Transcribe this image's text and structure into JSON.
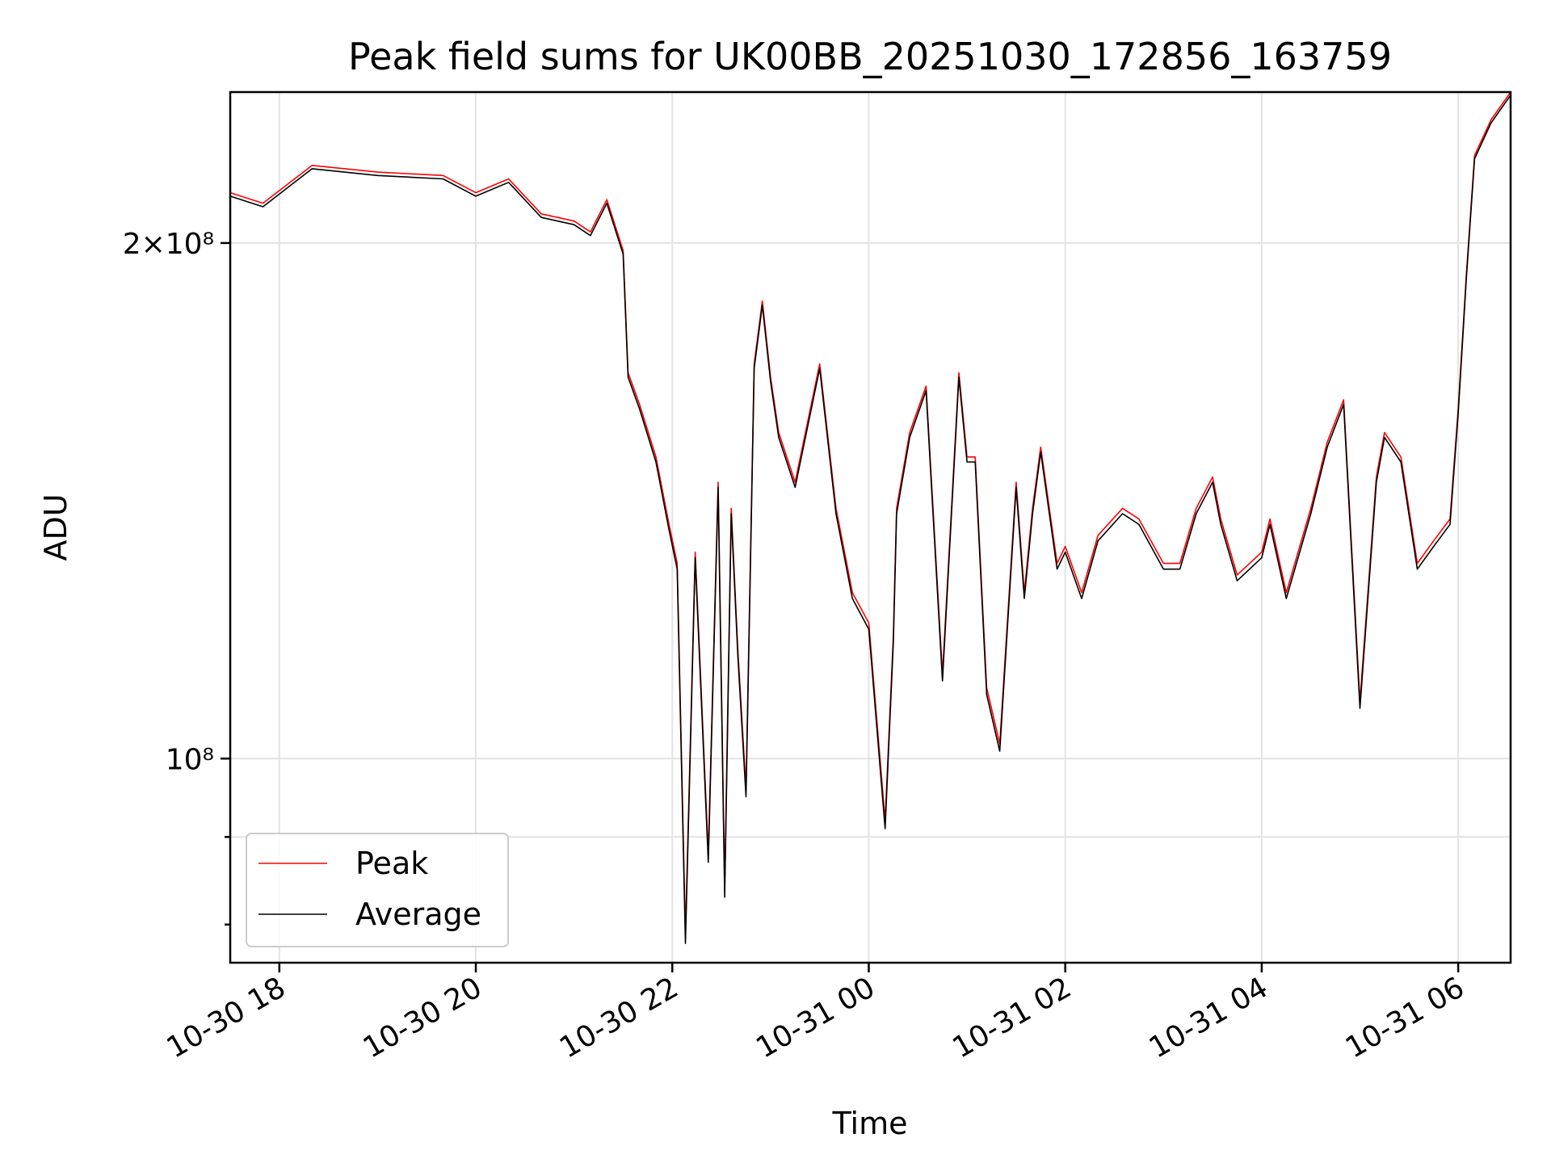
{
  "chart_data": {
    "type": "line",
    "title": "Peak field sums for UK00BB_20251030_172856_163759",
    "xlabel": "Time",
    "ylabel": "ADU",
    "yscale": "log",
    "ylim": [
      76000000,
      245000000
    ],
    "xlim": [
      "2025-10-30 17:30",
      "2025-10-31 06:32"
    ],
    "grid": true,
    "legend_position": "lower-left",
    "x_ticks": [
      {
        "value": "2025-10-30 18:00",
        "label": "10-30 18"
      },
      {
        "value": "2025-10-30 20:00",
        "label": "10-30 20"
      },
      {
        "value": "2025-10-30 22:00",
        "label": "10-30 22"
      },
      {
        "value": "2025-10-31 00:00",
        "label": "10-31 00"
      },
      {
        "value": "2025-10-31 02:00",
        "label": "10-31 02"
      },
      {
        "value": "2025-10-31 04:00",
        "label": "10-31 04"
      },
      {
        "value": "2025-10-31 06:00",
        "label": "10-31 06"
      }
    ],
    "y_ticks": [
      {
        "value": 200000000,
        "label": "2×10⁸"
      },
      {
        "value": 100000000,
        "label": "10⁸"
      }
    ],
    "series": [
      {
        "name": "Peak",
        "color": "#ff0000",
        "x": [
          "2025-10-30 17:30",
          "2025-10-30 17:50",
          "2025-10-30 18:20",
          "2025-10-30 19:00",
          "2025-10-30 19:40",
          "2025-10-30 20:00",
          "2025-10-30 20:20",
          "2025-10-30 20:40",
          "2025-10-30 21:00",
          "2025-10-30 21:10",
          "2025-10-30 21:20",
          "2025-10-30 21:30",
          "2025-10-30 21:33",
          "2025-10-30 21:40",
          "2025-10-30 21:50",
          "2025-10-30 21:58",
          "2025-10-30 22:03",
          "2025-10-30 22:08",
          "2025-10-30 22:14",
          "2025-10-30 22:22",
          "2025-10-30 22:28",
          "2025-10-30 22:32",
          "2025-10-30 22:36",
          "2025-10-30 22:40",
          "2025-10-30 22:45",
          "2025-10-30 22:50",
          "2025-10-30 22:55",
          "2025-10-30 23:00",
          "2025-10-30 23:05",
          "2025-10-30 23:15",
          "2025-10-30 23:30",
          "2025-10-30 23:40",
          "2025-10-30 23:50",
          "2025-10-31 00:00",
          "2025-10-31 00:10",
          "2025-10-31 00:15",
          "2025-10-31 00:17",
          "2025-10-31 00:25",
          "2025-10-31 00:35",
          "2025-10-31 00:45",
          "2025-10-31 00:55",
          "2025-10-31 01:00",
          "2025-10-31 01:05",
          "2025-10-31 01:12",
          "2025-10-31 01:20",
          "2025-10-31 01:30",
          "2025-10-31 01:35",
          "2025-10-31 01:40",
          "2025-10-31 01:45",
          "2025-10-31 01:55",
          "2025-10-31 02:00",
          "2025-10-31 02:10",
          "2025-10-31 02:20",
          "2025-10-31 02:35",
          "2025-10-31 02:45",
          "2025-10-31 03:00",
          "2025-10-31 03:10",
          "2025-10-31 03:20",
          "2025-10-31 03:30",
          "2025-10-31 03:35",
          "2025-10-31 03:45",
          "2025-10-31 04:00",
          "2025-10-31 04:05",
          "2025-10-31 04:15",
          "2025-10-31 04:30",
          "2025-10-31 04:40",
          "2025-10-31 04:50",
          "2025-10-31 05:00",
          "2025-10-31 05:10",
          "2025-10-31 05:15",
          "2025-10-31 05:25",
          "2025-10-31 05:35",
          "2025-10-31 05:45",
          "2025-10-31 05:55",
          "2025-10-31 06:00",
          "2025-10-31 06:05",
          "2025-10-31 06:10",
          "2025-10-31 06:20",
          "2025-10-31 06:32"
        ],
        "values": [
          214000000,
          211000000,
          222000000,
          220000000,
          219000000,
          214000000,
          218000000,
          208000000,
          206000000,
          203000000,
          212000000,
          198000000,
          168000000,
          161000000,
          150000000,
          137000000,
          130000000,
          79000000,
          132000000,
          88000000,
          145000000,
          84000000,
          140000000,
          116000000,
          96000000,
          170000000,
          185000000,
          167000000,
          155000000,
          145000000,
          170000000,
          140000000,
          125000000,
          120000000,
          92000000,
          118000000,
          140000000,
          155000000,
          165000000,
          112000000,
          168000000,
          150000000,
          150000000,
          110000000,
          102000000,
          145000000,
          125000000,
          140000000,
          152000000,
          130000000,
          133000000,
          125000000,
          135000000,
          140000000,
          138000000,
          130000000,
          130000000,
          140000000,
          146000000,
          138000000,
          128000000,
          132000000,
          138000000,
          125000000,
          140000000,
          153000000,
          162000000,
          108000000,
          146000000,
          155000000,
          150000000,
          130000000,
          134000000,
          138000000,
          160000000,
          192000000,
          225000000,
          236000000,
          245000000
        ]
      },
      {
        "name": "Average",
        "color": "#000000",
        "x": [
          "2025-10-30 17:30",
          "2025-10-30 17:50",
          "2025-10-30 18:20",
          "2025-10-30 19:00",
          "2025-10-30 19:40",
          "2025-10-30 20:00",
          "2025-10-30 20:20",
          "2025-10-30 20:40",
          "2025-10-30 21:00",
          "2025-10-30 21:10",
          "2025-10-30 21:20",
          "2025-10-30 21:30",
          "2025-10-30 21:33",
          "2025-10-30 21:40",
          "2025-10-30 21:50",
          "2025-10-30 21:58",
          "2025-10-30 22:03",
          "2025-10-30 22:08",
          "2025-10-30 22:14",
          "2025-10-30 22:22",
          "2025-10-30 22:28",
          "2025-10-30 22:32",
          "2025-10-30 22:36",
          "2025-10-30 22:40",
          "2025-10-30 22:45",
          "2025-10-30 22:50",
          "2025-10-30 22:55",
          "2025-10-30 23:00",
          "2025-10-30 23:05",
          "2025-10-30 23:15",
          "2025-10-30 23:30",
          "2025-10-30 23:40",
          "2025-10-30 23:50",
          "2025-10-31 00:00",
          "2025-10-31 00:10",
          "2025-10-31 00:15",
          "2025-10-31 00:17",
          "2025-10-31 00:25",
          "2025-10-31 00:35",
          "2025-10-31 00:45",
          "2025-10-31 00:55",
          "2025-10-31 01:00",
          "2025-10-31 01:05",
          "2025-10-31 01:12",
          "2025-10-31 01:20",
          "2025-10-31 01:30",
          "2025-10-31 01:35",
          "2025-10-31 01:40",
          "2025-10-31 01:45",
          "2025-10-31 01:55",
          "2025-10-31 02:00",
          "2025-10-31 02:10",
          "2025-10-31 02:20",
          "2025-10-31 02:35",
          "2025-10-31 02:45",
          "2025-10-31 03:00",
          "2025-10-31 03:10",
          "2025-10-31 03:20",
          "2025-10-31 03:30",
          "2025-10-31 03:35",
          "2025-10-31 03:45",
          "2025-10-31 04:00",
          "2025-10-31 04:05",
          "2025-10-31 04:15",
          "2025-10-31 04:30",
          "2025-10-31 04:40",
          "2025-10-31 04:50",
          "2025-10-31 05:00",
          "2025-10-31 05:10",
          "2025-10-31 05:15",
          "2025-10-31 05:25",
          "2025-10-31 05:35",
          "2025-10-31 05:45",
          "2025-10-31 05:55",
          "2025-10-31 06:00",
          "2025-10-31 06:05",
          "2025-10-31 06:10",
          "2025-10-31 06:20",
          "2025-10-31 06:32"
        ],
        "values": [
          213000000,
          210000000,
          221000000,
          219000000,
          218000000,
          213000000,
          217000000,
          207000000,
          205000000,
          202000000,
          211000000,
          197000000,
          167000000,
          160000000,
          149000000,
          136000000,
          129000000,
          78000000,
          131000000,
          87000000,
          144000000,
          83000000,
          139000000,
          115000000,
          95000000,
          169000000,
          184000000,
          166000000,
          154000000,
          144000000,
          169000000,
          139000000,
          124000000,
          119000000,
          91000000,
          117000000,
          139000000,
          154000000,
          164000000,
          111000000,
          167000000,
          149000000,
          149000000,
          109000000,
          101000000,
          144000000,
          124000000,
          139000000,
          151000000,
          129000000,
          132000000,
          124000000,
          134000000,
          139000000,
          137000000,
          129000000,
          129000000,
          139000000,
          145000000,
          137000000,
          127000000,
          131000000,
          137000000,
          124000000,
          139000000,
          152000000,
          161000000,
          107000000,
          145000000,
          154000000,
          149000000,
          129000000,
          133000000,
          137000000,
          159000000,
          191000000,
          224000000,
          235000000,
          244000000
        ]
      }
    ]
  }
}
